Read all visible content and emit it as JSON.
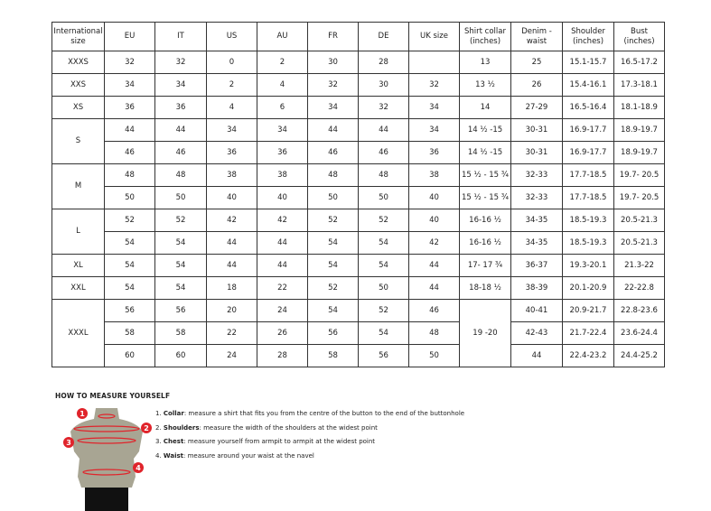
{
  "headers": [
    "International size",
    "EU",
    "IT",
    "US",
    "AU",
    "FR",
    "DE",
    "UK size",
    "Shirt collar (inches)",
    "Denim - waist",
    "Shoulder (inches)",
    "Bust (inches)"
  ],
  "groups": [
    {
      "size": "XXXS",
      "rows": [
        [
          "32",
          "32",
          "0",
          "2",
          "30",
          "28",
          "",
          "13",
          "25",
          "15.1-15.7",
          "16.5-17.2"
        ]
      ]
    },
    {
      "size": "XXS",
      "rows": [
        [
          "34",
          "34",
          "2",
          "4",
          "32",
          "30",
          "32",
          "13 ½",
          "26",
          "15.4-16.1",
          "17.3-18.1"
        ]
      ]
    },
    {
      "size": "XS",
      "rows": [
        [
          "36",
          "36",
          "4",
          "6",
          "34",
          "32",
          "34",
          "14",
          "27-29",
          "16.5-16.4",
          "18.1-18.9"
        ]
      ]
    },
    {
      "size": "S",
      "rows": [
        [
          "44",
          "44",
          "34",
          "34",
          "44",
          "44",
          "34",
          "14 ½ -15",
          "30-31",
          "16.9-17.7",
          "18.9-19.7"
        ],
        [
          "46",
          "46",
          "36",
          "36",
          "46",
          "46",
          "36",
          "14 ½ -15",
          "30-31",
          "16.9-17.7",
          "18.9-19.7"
        ]
      ]
    },
    {
      "size": "M",
      "rows": [
        [
          "48",
          "48",
          "38",
          "38",
          "48",
          "48",
          "38",
          "15 ½ - 15 ¾",
          "32-33",
          "17.7-18.5",
          "19.7- 20.5"
        ],
        [
          "50",
          "50",
          "40",
          "40",
          "50",
          "50",
          "40",
          "15 ½ - 15 ¾",
          "32-33",
          "17.7-18.5",
          "19.7- 20.5"
        ]
      ]
    },
    {
      "size": "L",
      "rows": [
        [
          "52",
          "52",
          "42",
          "42",
          "52",
          "52",
          "40",
          "16-16 ½",
          "34-35",
          "18.5-19.3",
          "20.5-21.3"
        ],
        [
          "54",
          "54",
          "44",
          "44",
          "54",
          "54",
          "42",
          "16-16 ½",
          "34-35",
          "18.5-19.3",
          "20.5-21.3"
        ]
      ]
    },
    {
      "size": "XL",
      "rows": [
        [
          "54",
          "54",
          "44",
          "44",
          "54",
          "54",
          "44",
          "17- 17 ¾",
          "36-37",
          "19.3-20.1",
          "21.3-22"
        ]
      ]
    },
    {
      "size": "XXL",
      "rows": [
        [
          "54",
          "54",
          "18",
          "22",
          "52",
          "50",
          "44",
          "18-18 ½",
          "38-39",
          "20.1-20.9",
          "22-22.8"
        ]
      ]
    },
    {
      "size": "XXXL",
      "merged_collar": "19 -20",
      "rows": [
        [
          "56",
          "56",
          "20",
          "24",
          "54",
          "52",
          "46",
          null,
          "40-41",
          "20.9-21.7",
          "22.8-23.6"
        ],
        [
          "58",
          "58",
          "22",
          "26",
          "56",
          "54",
          "48",
          null,
          "42-43",
          "21.7-22.4",
          "23.6-24.4"
        ],
        [
          "60",
          "60",
          "24",
          "28",
          "58",
          "56",
          "50",
          null,
          "44",
          "22.4-23.2",
          "24.4-25.2"
        ]
      ]
    }
  ],
  "measure": {
    "title": "HOW TO MEASURE YOURSELF",
    "steps": [
      {
        "num": "1.",
        "term": "Collar",
        "text": ": measure a shirt that fits you from the centre of the button to the end of the buttonhole"
      },
      {
        "num": "2.",
        "term": "Shoulders",
        "text": ": measure the width of the shoulders at the widest point"
      },
      {
        "num": "3.",
        "term": "Chest",
        "text": ": measure yourself from armpit to armpit at the widest point"
      },
      {
        "num": "4.",
        "term": "Waist",
        "text": ": measure around your waist at the navel"
      }
    ],
    "markers": [
      "1",
      "2",
      "3",
      "4"
    ],
    "marker_color": "#e0242b",
    "torso_color": "#a8a593"
  }
}
